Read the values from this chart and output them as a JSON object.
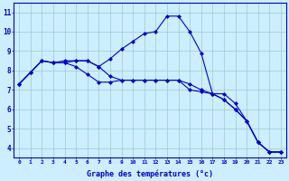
{
  "xlabel": "Graphe des températures (°c)",
  "background_color": "#cceeff",
  "line_color": "#0000cc",
  "marker": "D",
  "markersize": 2.0,
  "linewidth": 0.8,
  "xlim": [
    -0.5,
    23.5
  ],
  "ylim": [
    3.5,
    11.5
  ],
  "xticks": [
    0,
    1,
    2,
    3,
    4,
    5,
    6,
    7,
    8,
    9,
    10,
    11,
    12,
    13,
    14,
    15,
    16,
    17,
    18,
    19,
    20,
    21,
    22,
    23
  ],
  "yticks": [
    4,
    5,
    6,
    7,
    8,
    9,
    10,
    11
  ],
  "grid_color": "#99cccc",
  "series": [
    [
      7.3,
      7.9,
      8.5,
      8.4,
      8.4,
      8.5,
      8.5,
      8.2,
      8.6,
      9.1,
      9.5,
      9.9,
      10.0,
      10.8,
      10.8,
      10.0,
      8.9,
      6.8,
      6.8,
      6.3,
      5.4,
      4.3,
      3.8,
      3.8
    ],
    [
      7.3,
      7.9,
      8.5,
      8.4,
      8.4,
      8.2,
      7.8,
      7.4,
      7.4,
      7.5,
      7.5,
      7.5,
      7.5,
      7.5,
      7.5,
      7.0,
      6.9,
      6.8,
      6.5,
      6.0,
      5.4,
      4.3,
      3.8,
      3.8
    ],
    [
      7.3,
      7.9,
      8.5,
      8.4,
      8.5,
      8.5,
      8.5,
      8.2,
      7.7,
      7.5,
      7.5,
      7.5,
      7.5,
      7.5,
      7.5,
      7.3,
      7.0,
      6.8,
      6.5,
      6.0,
      5.4,
      4.3,
      3.8,
      3.8
    ]
  ]
}
